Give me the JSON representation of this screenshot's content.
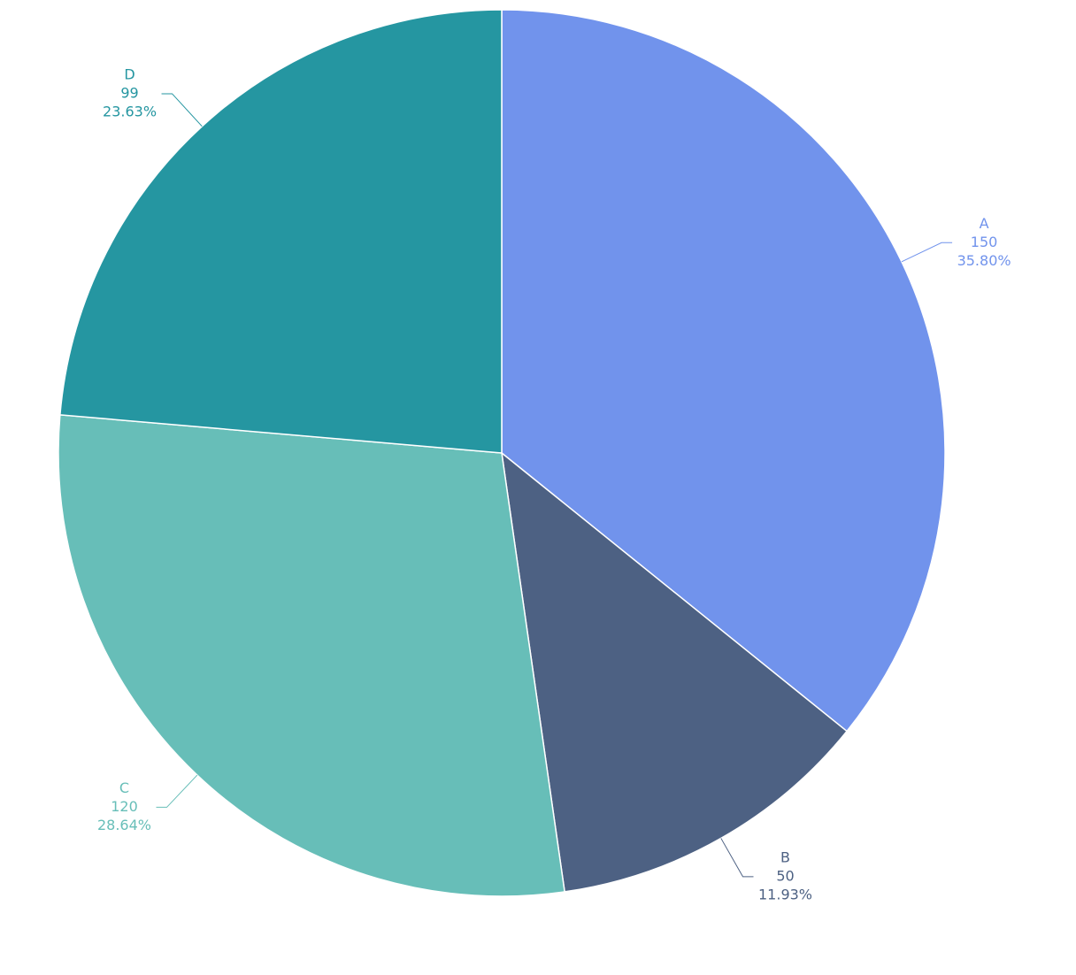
{
  "chart_data": {
    "type": "pie",
    "categories": [
      "A",
      "B",
      "C",
      "D"
    ],
    "values": [
      150,
      50,
      120,
      99
    ],
    "percents": [
      {
        "value": 35.8,
        "label": "35.80%"
      },
      {
        "value": 11.93,
        "label": "11.93%"
      },
      {
        "value": 28.64,
        "label": "28.64%"
      },
      {
        "value": 23.63,
        "label": "23.63%"
      }
    ],
    "colors": [
      "#7193ec",
      "#4d6183",
      "#67beb8",
      "#2596a1"
    ]
  }
}
